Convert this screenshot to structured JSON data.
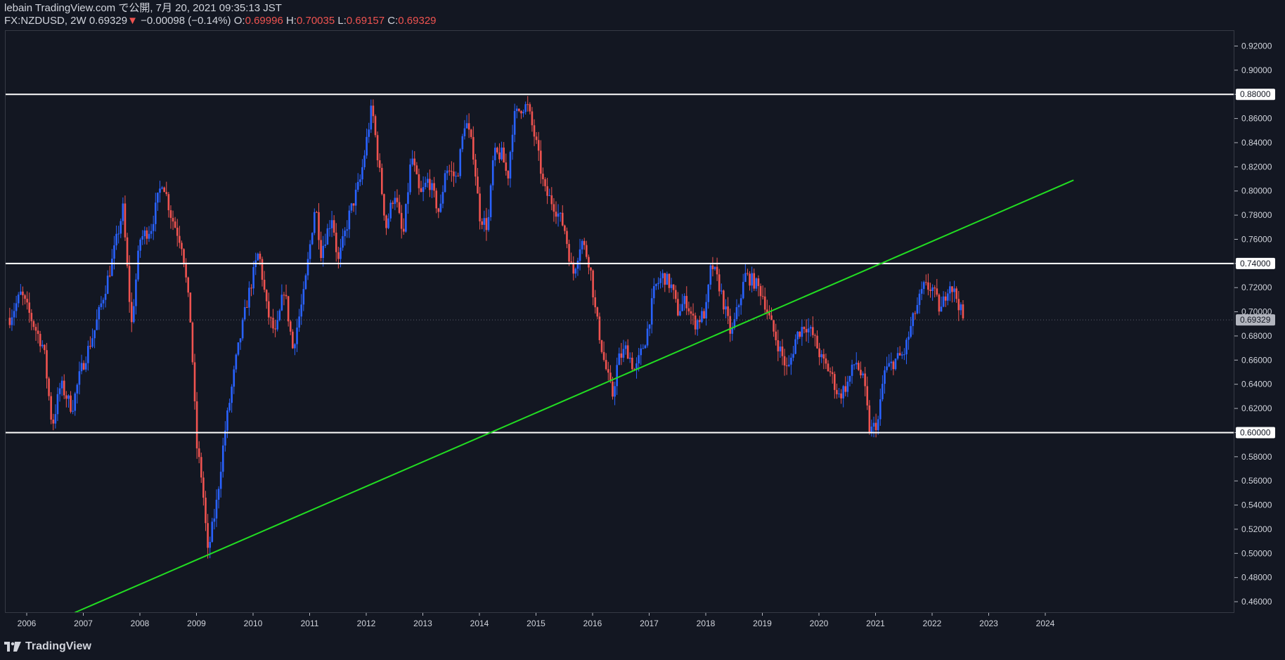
{
  "header": {
    "publisher": "lebain TradingView.com で公開, 7月 20, 2021 09:35:13 JST",
    "symbol": "FX:NZDUSD, 2W",
    "last": "0.69329",
    "change_arrow": "▼",
    "change": "−0.00098 (−0.14%)",
    "o_label": "O:",
    "o_val": "0.69996",
    "h_label": "H:",
    "h_val": "0.70035",
    "l_label": "L:",
    "l_val": "0.69157",
    "c_label": "C:",
    "c_val": "0.69329"
  },
  "footer": {
    "logo_text": "TradingView"
  },
  "colors": {
    "background": "#131722",
    "up": "#2962ff",
    "down": "#ef5350",
    "trendline": "#22dd22",
    "hline": "#ffffff",
    "text": "#d1d4dc"
  },
  "chart_data": {
    "type": "candlestick",
    "symbol": "FX:NZDUSD",
    "interval": "2W",
    "ylim": [
      0.45,
      0.93
    ],
    "xlim": [
      2005.7,
      2024.5
    ],
    "y_ticks": [
      "0.46000",
      "0.48000",
      "0.50000",
      "0.52000",
      "0.54000",
      "0.56000",
      "0.58000",
      "0.60000",
      "0.62000",
      "0.64000",
      "0.66000",
      "0.68000",
      "0.70000",
      "0.72000",
      "0.74000",
      "0.76000",
      "0.78000",
      "0.80000",
      "0.82000",
      "0.84000",
      "0.86000",
      "0.88000",
      "0.90000",
      "0.92000"
    ],
    "x_ticks": [
      "2006",
      "2007",
      "2008",
      "2009",
      "2010",
      "2011",
      "2012",
      "2013",
      "2014",
      "2015",
      "2016",
      "2017",
      "2018",
      "2019",
      "2020",
      "2021",
      "2022",
      "2023",
      "2024"
    ],
    "horizontal_lines": [
      {
        "price": 0.88,
        "label": "0.88000"
      },
      {
        "price": 0.74,
        "label": "0.74000"
      },
      {
        "price": 0.6,
        "label": "0.60000"
      }
    ],
    "trendline": {
      "x1": 2006.85,
      "y1": 0.451,
      "x2": 2024.5,
      "y2": 0.809
    },
    "last_price": {
      "price": 0.69329,
      "label": "0.69329"
    },
    "price_path": [
      [
        2005.7,
        0.695
      ],
      [
        2005.9,
        0.715
      ],
      [
        2006.1,
        0.692
      ],
      [
        2006.3,
        0.67
      ],
      [
        2006.45,
        0.605
      ],
      [
        2006.6,
        0.64
      ],
      [
        2006.8,
        0.62
      ],
      [
        2006.95,
        0.65
      ],
      [
        2007.2,
        0.685
      ],
      [
        2007.5,
        0.74
      ],
      [
        2007.7,
        0.785
      ],
      [
        2007.85,
        0.688
      ],
      [
        2008.0,
        0.76
      ],
      [
        2008.2,
        0.77
      ],
      [
        2008.4,
        0.81
      ],
      [
        2008.55,
        0.78
      ],
      [
        2008.75,
        0.755
      ],
      [
        2008.9,
        0.69
      ],
      [
        2009.0,
        0.59
      ],
      [
        2009.1,
        0.56
      ],
      [
        2009.2,
        0.5
      ],
      [
        2009.35,
        0.54
      ],
      [
        2009.5,
        0.6
      ],
      [
        2009.7,
        0.66
      ],
      [
        2009.9,
        0.71
      ],
      [
        2010.1,
        0.75
      ],
      [
        2010.25,
        0.7
      ],
      [
        2010.4,
        0.68
      ],
      [
        2010.55,
        0.72
      ],
      [
        2010.7,
        0.67
      ],
      [
        2010.9,
        0.715
      ],
      [
        2011.1,
        0.79
      ],
      [
        2011.2,
        0.75
      ],
      [
        2011.4,
        0.78
      ],
      [
        2011.5,
        0.74
      ],
      [
        2011.7,
        0.78
      ],
      [
        2011.9,
        0.81
      ],
      [
        2012.1,
        0.87
      ],
      [
        2012.2,
        0.83
      ],
      [
        2012.35,
        0.77
      ],
      [
        2012.5,
        0.8
      ],
      [
        2012.65,
        0.76
      ],
      [
        2012.8,
        0.83
      ],
      [
        2012.95,
        0.795
      ],
      [
        2013.1,
        0.81
      ],
      [
        2013.3,
        0.78
      ],
      [
        2013.4,
        0.82
      ],
      [
        2013.6,
        0.81
      ],
      [
        2013.75,
        0.86
      ],
      [
        2013.9,
        0.83
      ],
      [
        2014.0,
        0.78
      ],
      [
        2014.15,
        0.77
      ],
      [
        2014.25,
        0.83
      ],
      [
        2014.4,
        0.83
      ],
      [
        2014.5,
        0.81
      ],
      [
        2014.6,
        0.86
      ],
      [
        2014.75,
        0.87
      ],
      [
        2014.85,
        0.87
      ],
      [
        2015.0,
        0.84
      ],
      [
        2015.15,
        0.8
      ],
      [
        2015.3,
        0.79
      ],
      [
        2015.5,
        0.77
      ],
      [
        2015.65,
        0.73
      ],
      [
        2015.8,
        0.76
      ],
      [
        2015.95,
        0.74
      ],
      [
        2016.05,
        0.7
      ],
      [
        2016.2,
        0.66
      ],
      [
        2016.35,
        0.63
      ],
      [
        2016.45,
        0.66
      ],
      [
        2016.6,
        0.67
      ],
      [
        2016.75,
        0.65
      ],
      [
        2016.95,
        0.68
      ],
      [
        2017.1,
        0.72
      ],
      [
        2017.25,
        0.73
      ],
      [
        2017.4,
        0.72
      ],
      [
        2017.5,
        0.7
      ],
      [
        2017.65,
        0.71
      ],
      [
        2017.8,
        0.69
      ],
      [
        2018.0,
        0.7
      ],
      [
        2018.1,
        0.74
      ],
      [
        2018.25,
        0.72
      ],
      [
        2018.35,
        0.7
      ],
      [
        2018.45,
        0.68
      ],
      [
        2018.55,
        0.7
      ],
      [
        2018.7,
        0.73
      ],
      [
        2018.85,
        0.725
      ],
      [
        2019.0,
        0.715
      ],
      [
        2019.15,
        0.69
      ],
      [
        2019.3,
        0.67
      ],
      [
        2019.45,
        0.65
      ],
      [
        2019.6,
        0.68
      ],
      [
        2019.75,
        0.69
      ],
      [
        2019.9,
        0.68
      ],
      [
        2020.05,
        0.66
      ],
      [
        2020.2,
        0.65
      ],
      [
        2020.35,
        0.63
      ],
      [
        2020.5,
        0.64
      ],
      [
        2020.65,
        0.66
      ],
      [
        2020.8,
        0.64
      ],
      [
        2020.9,
        0.6
      ],
      [
        2021.05,
        0.61
      ],
      [
        2021.15,
        0.65
      ],
      [
        2021.35,
        0.66
      ],
      [
        2021.5,
        0.665
      ],
      [
        2021.7,
        0.7
      ],
      [
        2021.85,
        0.72
      ],
      [
        2022.0,
        0.72
      ],
      [
        2022.15,
        0.7
      ],
      [
        2022.3,
        0.725
      ],
      [
        2022.45,
        0.71
      ],
      [
        2022.55,
        0.693
      ]
    ]
  }
}
